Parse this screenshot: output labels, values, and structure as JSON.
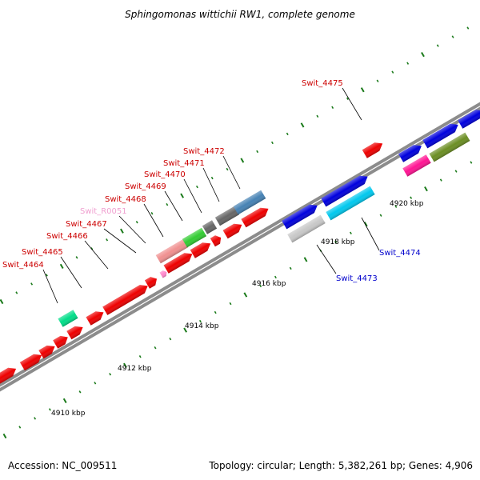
{
  "title": "Sphingomonas wittichii RW1, complete genome",
  "footer": {
    "accession": "Accession: NC_009511",
    "summary": "Topology: circular; Length: 5,382,261 bp; Genes: 4,906"
  },
  "colors": {
    "backbone": "#8c8c8c",
    "tick": "#1a7a1a",
    "leader": "#000000"
  },
  "kbp_labels": [
    "4910 kbp",
    "4912 kbp",
    "4914 kbp",
    "4916 kbp",
    "4918 kbp",
    "4920 kbp"
  ],
  "gene_labels": [
    {
      "text": "Swit_4464",
      "color": "#cc0000"
    },
    {
      "text": "Swit_4465",
      "color": "#cc0000"
    },
    {
      "text": "Swit_4466",
      "color": "#cc0000"
    },
    {
      "text": "Swit_4467",
      "color": "#cc0000"
    },
    {
      "text": "Swit_R0051",
      "color": "#f0a0d0"
    },
    {
      "text": "Swit_4468",
      "color": "#cc0000"
    },
    {
      "text": "Swit_4469",
      "color": "#cc0000"
    },
    {
      "text": "Swit_4470",
      "color": "#cc0000"
    },
    {
      "text": "Swit_4471",
      "color": "#cc0000"
    },
    {
      "text": "Swit_4472",
      "color": "#cc0000"
    },
    {
      "text": "Swit_4475",
      "color": "#cc0000"
    },
    {
      "text": "Swit_4473",
      "color": "#0000cc"
    },
    {
      "text": "Swit_4474",
      "color": "#0000cc"
    }
  ],
  "genes": [
    {
      "color": "#ee0000"
    },
    {
      "color": "#ee0000"
    },
    {
      "color": "#ee0000"
    },
    {
      "color": "#ee0000"
    },
    {
      "color": "#ee0000"
    },
    {
      "color": "#ee0000"
    },
    {
      "color": "#ee0000"
    },
    {
      "color": "#ee0000"
    },
    {
      "color": "#ee0000"
    },
    {
      "color": "#ee0000"
    },
    {
      "color": "#ee0000"
    },
    {
      "color": "#ee0000"
    },
    {
      "color": "#ee0000"
    },
    {
      "color": "#ee0000"
    },
    {
      "color": "#ee0000"
    },
    {
      "color": "#00dd88"
    },
    {
      "color": "#f09090"
    },
    {
      "color": "#33cc33"
    },
    {
      "color": "#ff88cc"
    },
    {
      "color": "#666666"
    },
    {
      "color": "#666666"
    },
    {
      "color": "#4682b4"
    },
    {
      "color": "#0000dd"
    },
    {
      "color": "#0000dd"
    },
    {
      "color": "#00c8ee"
    },
    {
      "color": "#c8c8c8"
    },
    {
      "color": "#0000dd"
    },
    {
      "color": "#0000dd"
    },
    {
      "color": "#0000dd"
    },
    {
      "color": "#ff1493"
    },
    {
      "color": "#6b8e23"
    }
  ]
}
